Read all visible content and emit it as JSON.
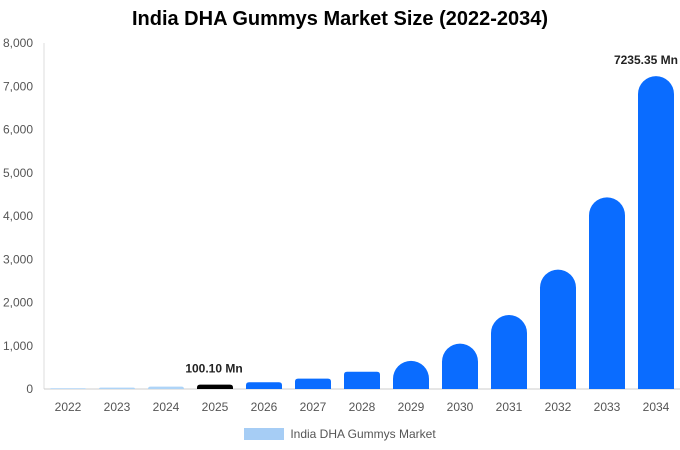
{
  "chart_data": {
    "type": "bar",
    "title": "India DHA Gummys Market Size (2022-2034)",
    "xlabel": "",
    "ylabel": "",
    "categories": [
      "2022",
      "2023",
      "2024",
      "2025",
      "2026",
      "2027",
      "2028",
      "2029",
      "2030",
      "2031",
      "2032",
      "2033",
      "2034"
    ],
    "series": [
      {
        "name": "India DHA Gummys Market",
        "values": [
          18,
          32,
          55,
          100.1,
          155,
          240,
          400,
          650,
          1050,
          1710,
          2760,
          4430,
          7235.35
        ]
      }
    ],
    "ylim": [
      0,
      8000
    ],
    "yticks": [
      "0",
      "1,000",
      "2,000",
      "3,000",
      "4,000",
      "5,000",
      "6,000",
      "7,000",
      "8,000"
    ],
    "data_labels": [
      {
        "category": "2025",
        "text": "100.10 Mn"
      },
      {
        "category": "2034",
        "text": "7235.35 Mn"
      }
    ],
    "bar_colors": {
      "historical": "#aed4f7",
      "base_year": "#000000",
      "forecast": "#0a6cff"
    },
    "base_year": "2025",
    "legend": {
      "position": "bottom",
      "swatch_color": "#a6cdf5"
    },
    "grid": false
  }
}
